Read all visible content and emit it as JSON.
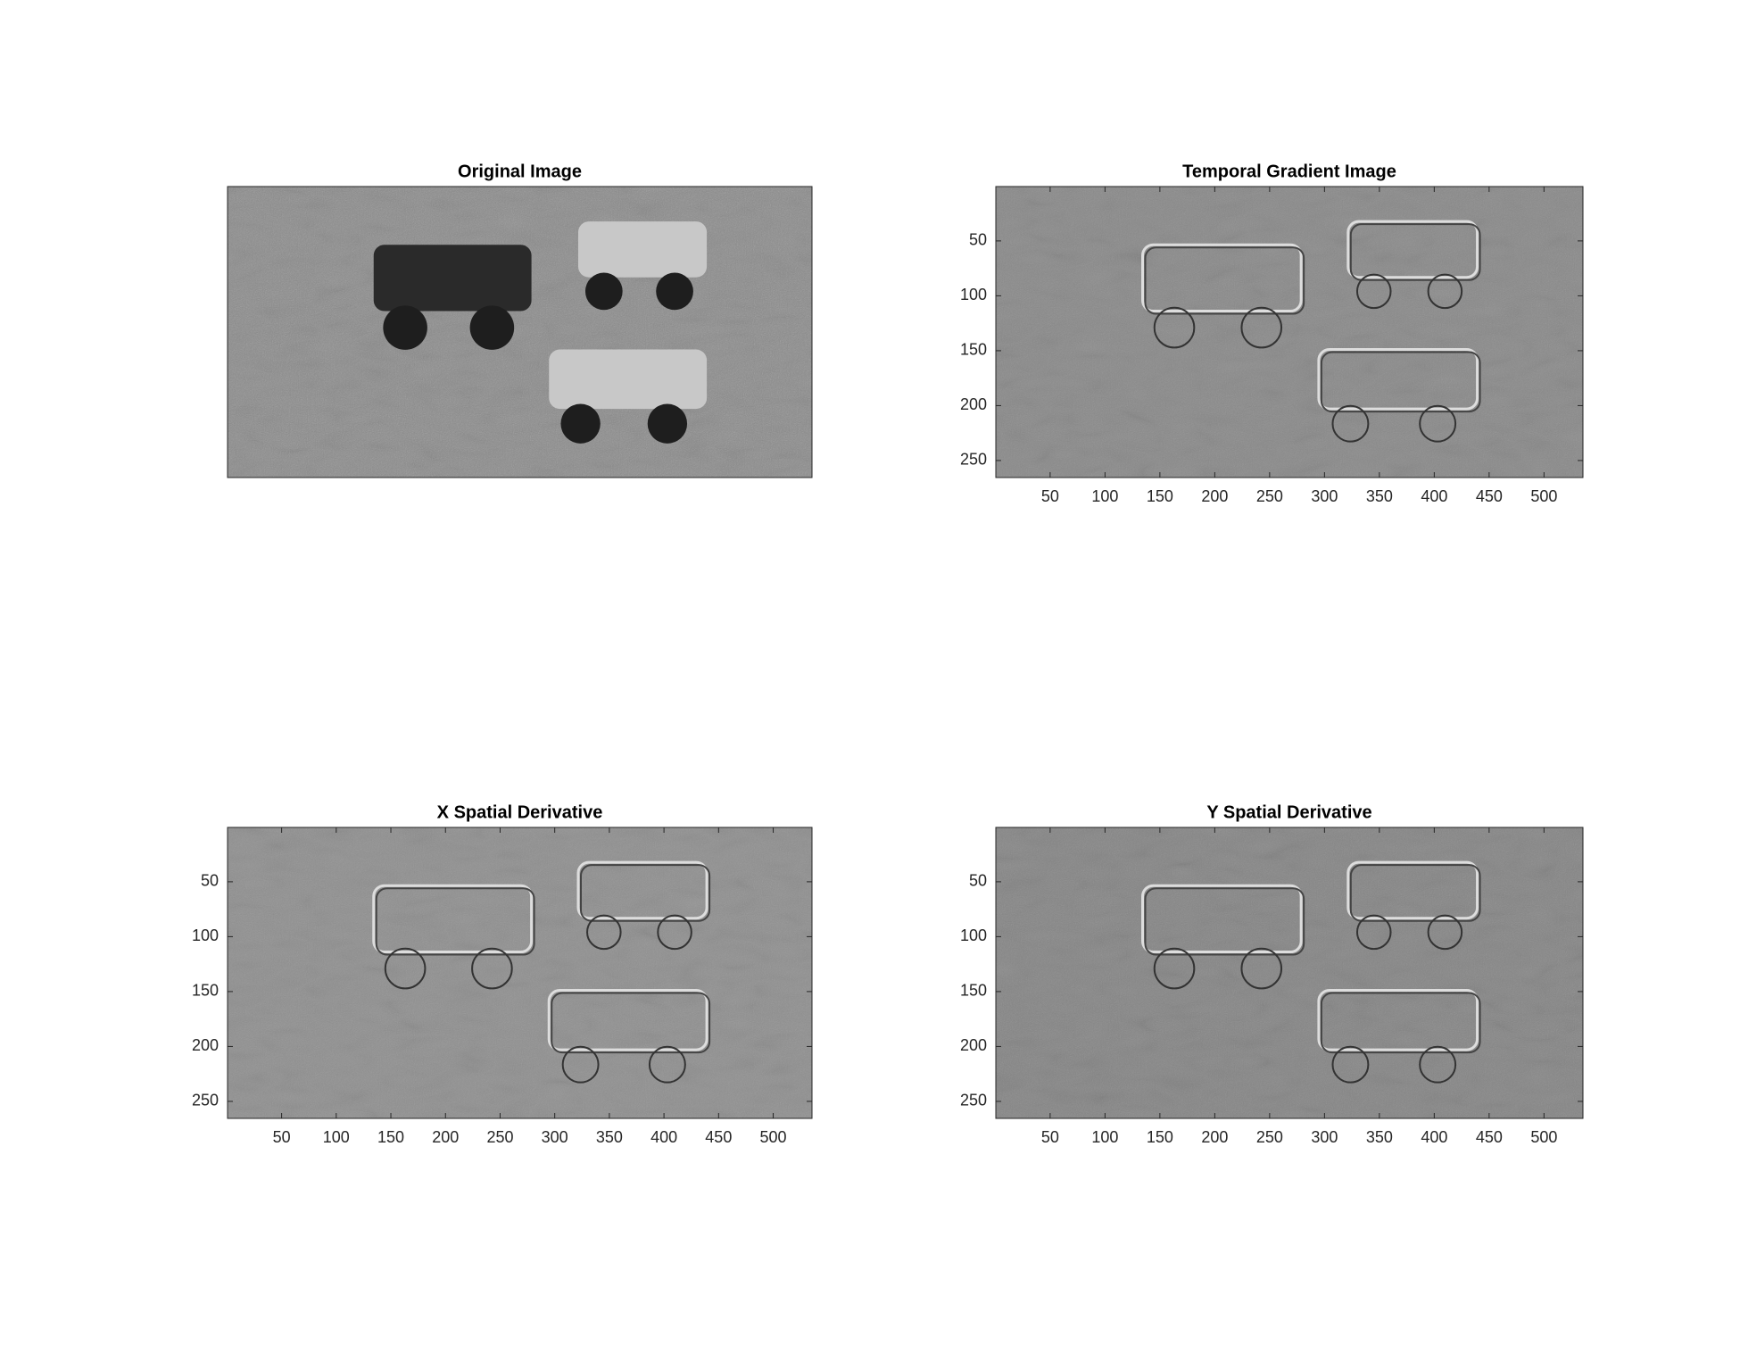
{
  "chart_data": [
    {
      "type": "image",
      "title": "Original Image"
    },
    {
      "type": "image",
      "title": "Temporal Gradient Image",
      "xlim": [
        0.5,
        535.5
      ],
      "ylim": [
        0.5,
        265.5
      ],
      "xticks": [
        50,
        100,
        150,
        200,
        250,
        300,
        350,
        400,
        450,
        500
      ],
      "yticks": [
        50,
        100,
        150,
        200,
        250
      ]
    },
    {
      "type": "image",
      "title": "X Spatial Derivative",
      "xlim": [
        0.5,
        535.5
      ],
      "ylim": [
        0.5,
        265.5
      ],
      "xticks": [
        50,
        100,
        150,
        200,
        250,
        300,
        350,
        400,
        450,
        500
      ],
      "yticks": [
        50,
        100,
        150,
        200,
        250
      ]
    },
    {
      "type": "image",
      "title": "Y Spatial Derivative",
      "xlim": [
        0.5,
        535.5
      ],
      "ylim": [
        0.5,
        265.5
      ],
      "xticks": [
        50,
        100,
        150,
        200,
        250,
        300,
        350,
        400,
        450,
        500
      ],
      "yticks": [
        50,
        100,
        150,
        200,
        250
      ]
    }
  ]
}
